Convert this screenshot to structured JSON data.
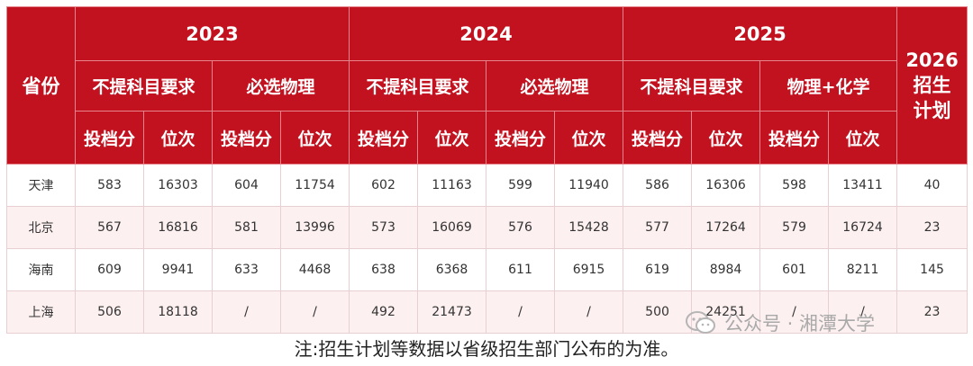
{
  "header": {
    "province": "省份",
    "plan_line1": "2026",
    "plan_line2": "招生",
    "plan_line3": "计划",
    "years": [
      "2023",
      "2024",
      "2025"
    ],
    "subjects": [
      "不提科目要求",
      "必选物理",
      "不提科目要求",
      "必选物理",
      "不提科目要求",
      "物理+化学"
    ],
    "columns": [
      "投档分",
      "位次",
      "投档分",
      "位次",
      "投档分",
      "位次",
      "投档分",
      "位次",
      "投档分",
      "位次",
      "投档分",
      "位次"
    ]
  },
  "rows": [
    {
      "province": "天津",
      "values": [
        "583",
        "16303",
        "604",
        "11754",
        "602",
        "11163",
        "599",
        "11940",
        "586",
        "16306",
        "598",
        "13411"
      ],
      "plan": "40"
    },
    {
      "province": "北京",
      "values": [
        "567",
        "16816",
        "581",
        "13996",
        "573",
        "16069",
        "576",
        "15428",
        "577",
        "17264",
        "579",
        "16724"
      ],
      "plan": "23"
    },
    {
      "province": "海南",
      "values": [
        "609",
        "9941",
        "633",
        "4468",
        "638",
        "6368",
        "611",
        "6915",
        "619",
        "8984",
        "601",
        "8211"
      ],
      "plan": "145"
    },
    {
      "province": "上海",
      "values": [
        "506",
        "18118",
        "/",
        "/",
        "492",
        "21473",
        "/",
        "/",
        "500",
        "24251",
        "/",
        "/"
      ],
      "plan": "23"
    }
  ],
  "watermark": "公众号 · 湘潭大学",
  "footnote": "注:招生计划等数据以省级招生部门公布的为准。",
  "colors": {
    "header_bg": "#c2111f",
    "even_row_bg": "#fdf0f0"
  },
  "icons": {
    "watermark_icon": "wechat-icon"
  }
}
